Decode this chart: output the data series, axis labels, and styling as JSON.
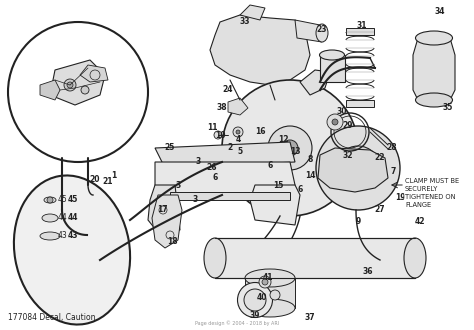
{
  "bg_color": "#ffffff",
  "line_color": "#222222",
  "bottom_left_text": "177084 Decal, Caution",
  "clamp_text": "CLAMP MUST BE\nSECURELY\nTIGHTENED ON\nFLANGE",
  "watermark": "Page design © 2004 - 2018 by ARI",
  "figsize": [
    4.74,
    3.3
  ],
  "dpi": 100
}
